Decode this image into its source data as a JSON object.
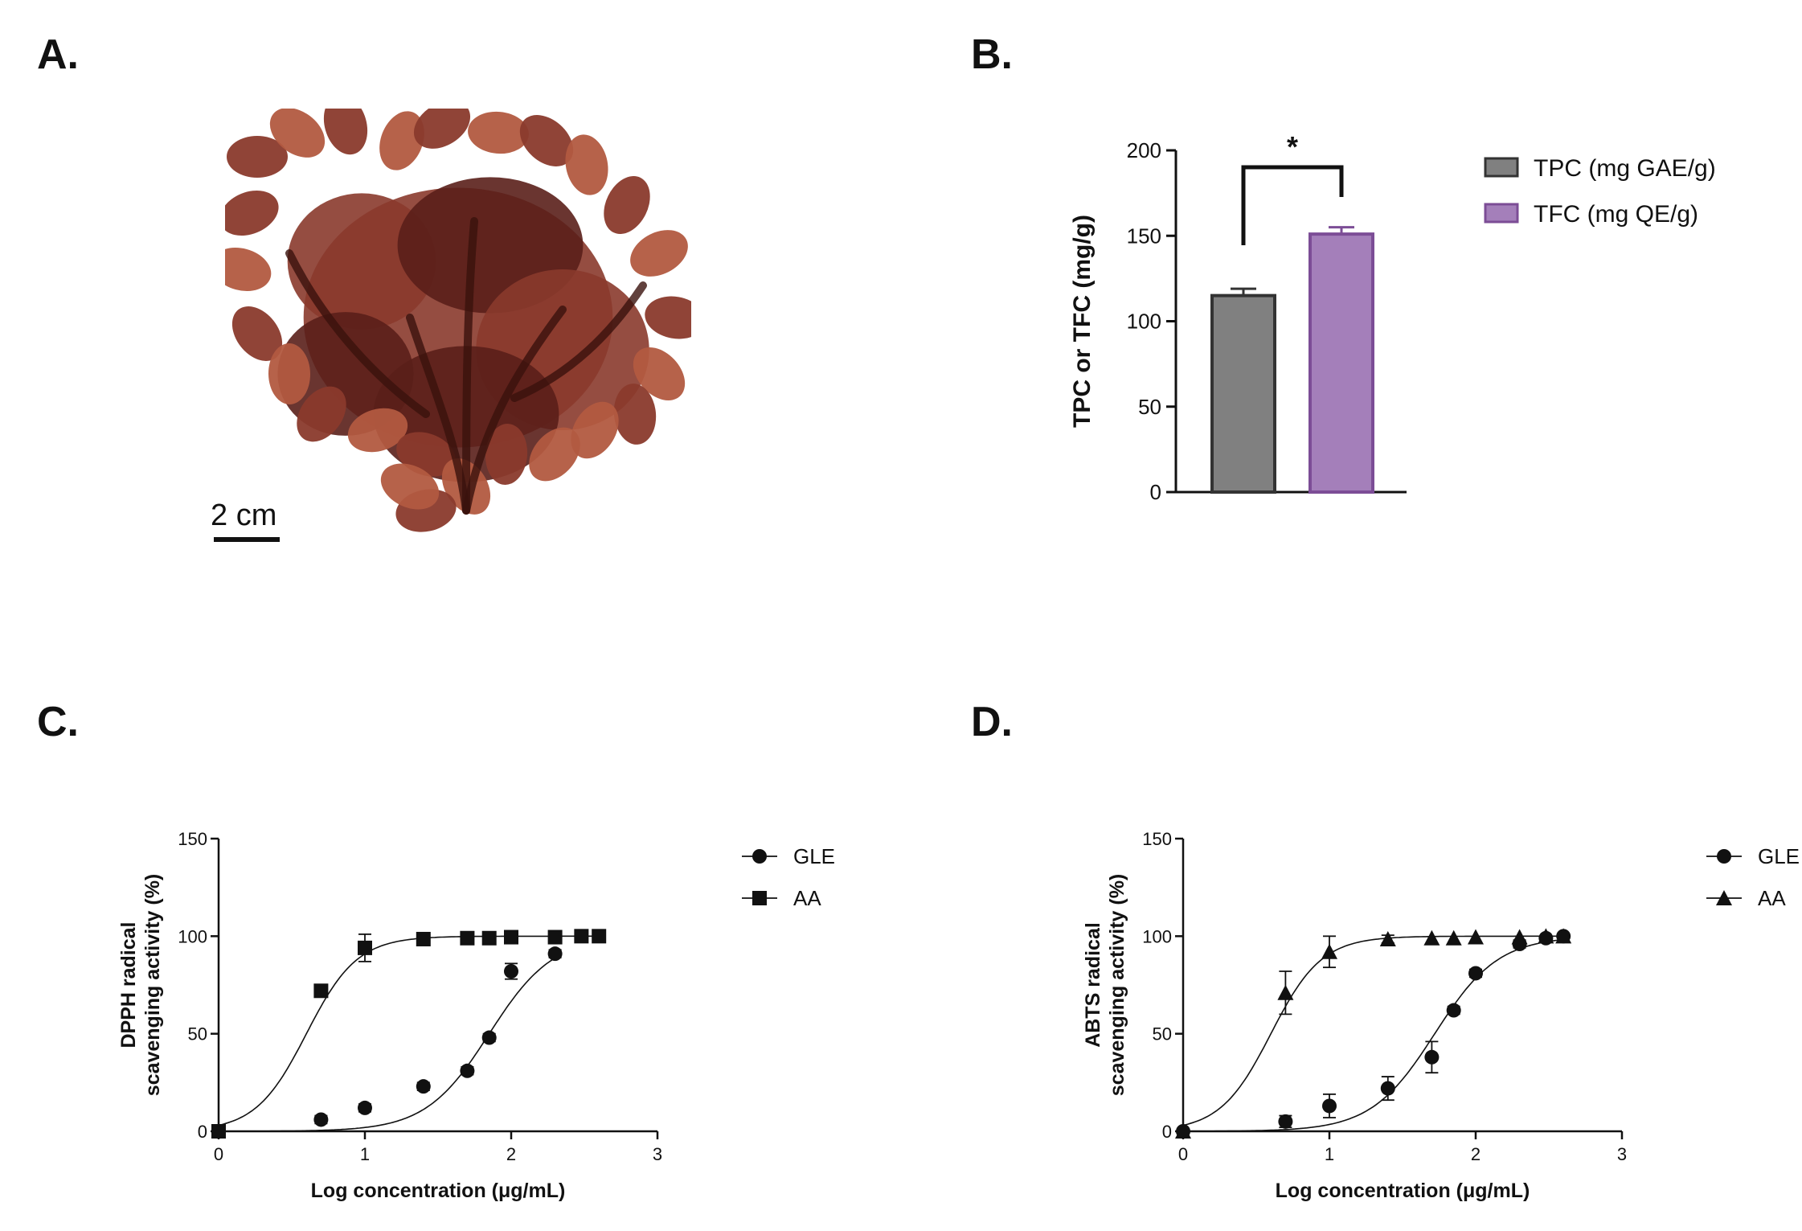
{
  "panels": {
    "a": {
      "letter": "A.",
      "scale_label": "2 cm"
    },
    "b": {
      "letter": "B."
    },
    "c": {
      "letter": "C."
    },
    "d": {
      "letter": "D."
    }
  },
  "colors": {
    "tpc_bar": "#808080",
    "tfc_bar": "#a47fba",
    "tfc_edge": "#7c4d96",
    "seaweed_dark": "#5a1f1a",
    "seaweed_mid": "#8a3a2c",
    "seaweed_light": "#b25a40"
  },
  "chart_data": [
    {
      "panel": "B",
      "type": "bar",
      "categories": [
        "TPC (mg GAE/g)",
        "TFC (mg QE/g)"
      ],
      "values": [
        115,
        151
      ],
      "errors": [
        4,
        4
      ],
      "ylabel": "TPC or TFC (mg/g)",
      "ylim": [
        0,
        200
      ],
      "yticks": [
        0,
        50,
        100,
        150,
        200
      ],
      "significance": "*",
      "legend": [
        "TPC (mg GAE/g)",
        "TFC (mg QE/g)"
      ],
      "legend_position": "right"
    },
    {
      "panel": "C",
      "type": "scatter",
      "xlabel": "Log concentration (μg/mL)",
      "ylabel_line1": "DPPH radical",
      "ylabel_line2": "scavenging activity (%)",
      "xlim": [
        0,
        3
      ],
      "ylim": [
        0,
        150
      ],
      "xticks": [
        0,
        1,
        2,
        3
      ],
      "yticks": [
        0,
        50,
        100,
        150
      ],
      "legend_position": "right",
      "series": [
        {
          "name": "GLE",
          "marker": "circle",
          "x": [
            0,
            0.7,
            1.0,
            1.4,
            1.7,
            1.85,
            2.0,
            2.3
          ],
          "y": [
            0,
            6,
            12,
            23,
            31,
            48,
            82,
            91
          ],
          "err": [
            1,
            2,
            2,
            2,
            2,
            2,
            4,
            2
          ],
          "fit": {
            "logEC50": 1.85,
            "hill": 2.0
          }
        },
        {
          "name": "AA",
          "marker": "square",
          "x": [
            0,
            0.7,
            1.0,
            1.4,
            1.7,
            1.85,
            2.0,
            2.3,
            2.48,
            2.6
          ],
          "y": [
            0,
            72,
            94,
            98.5,
            99,
            99,
            99.5,
            99.5,
            100,
            100
          ],
          "err": [
            1,
            2,
            7,
            2,
            1,
            1,
            1,
            1,
            1,
            1
          ],
          "fit": {
            "logEC50": 0.6,
            "hill": 2.5
          }
        }
      ]
    },
    {
      "panel": "D",
      "type": "scatter",
      "xlabel": "Log concentration (μg/mL)",
      "ylabel_line1": "ABTS radical",
      "ylabel_line2": "scavenging activity (%)",
      "xlim": [
        0,
        3
      ],
      "ylim": [
        0,
        150
      ],
      "xticks": [
        0,
        1,
        2,
        3
      ],
      "yticks": [
        0,
        50,
        100,
        150
      ],
      "legend_position": "right",
      "series": [
        {
          "name": "GLE",
          "marker": "circle",
          "x": [
            0,
            0.7,
            1.0,
            1.4,
            1.7,
            1.85,
            2.0,
            2.3,
            2.48,
            2.6
          ],
          "y": [
            0,
            5,
            13,
            22,
            38,
            62,
            81,
            96,
            99,
            100
          ],
          "err": [
            1,
            3,
            6,
            6,
            8,
            2,
            2,
            2,
            1,
            1
          ],
          "fit": {
            "logEC50": 1.72,
            "hill": 2.0
          }
        },
        {
          "name": "AA",
          "marker": "triangle",
          "x": [
            0,
            0.7,
            1.0,
            1.4,
            1.7,
            1.85,
            2.0,
            2.3,
            2.48,
            2.6
          ],
          "y": [
            0,
            71,
            92,
            98.5,
            99,
            99,
            99.5,
            99.5,
            100,
            100
          ],
          "err": [
            1,
            11,
            8,
            2,
            1,
            1,
            1,
            1,
            1,
            1
          ],
          "fit": {
            "logEC50": 0.6,
            "hill": 2.5
          }
        }
      ]
    }
  ]
}
